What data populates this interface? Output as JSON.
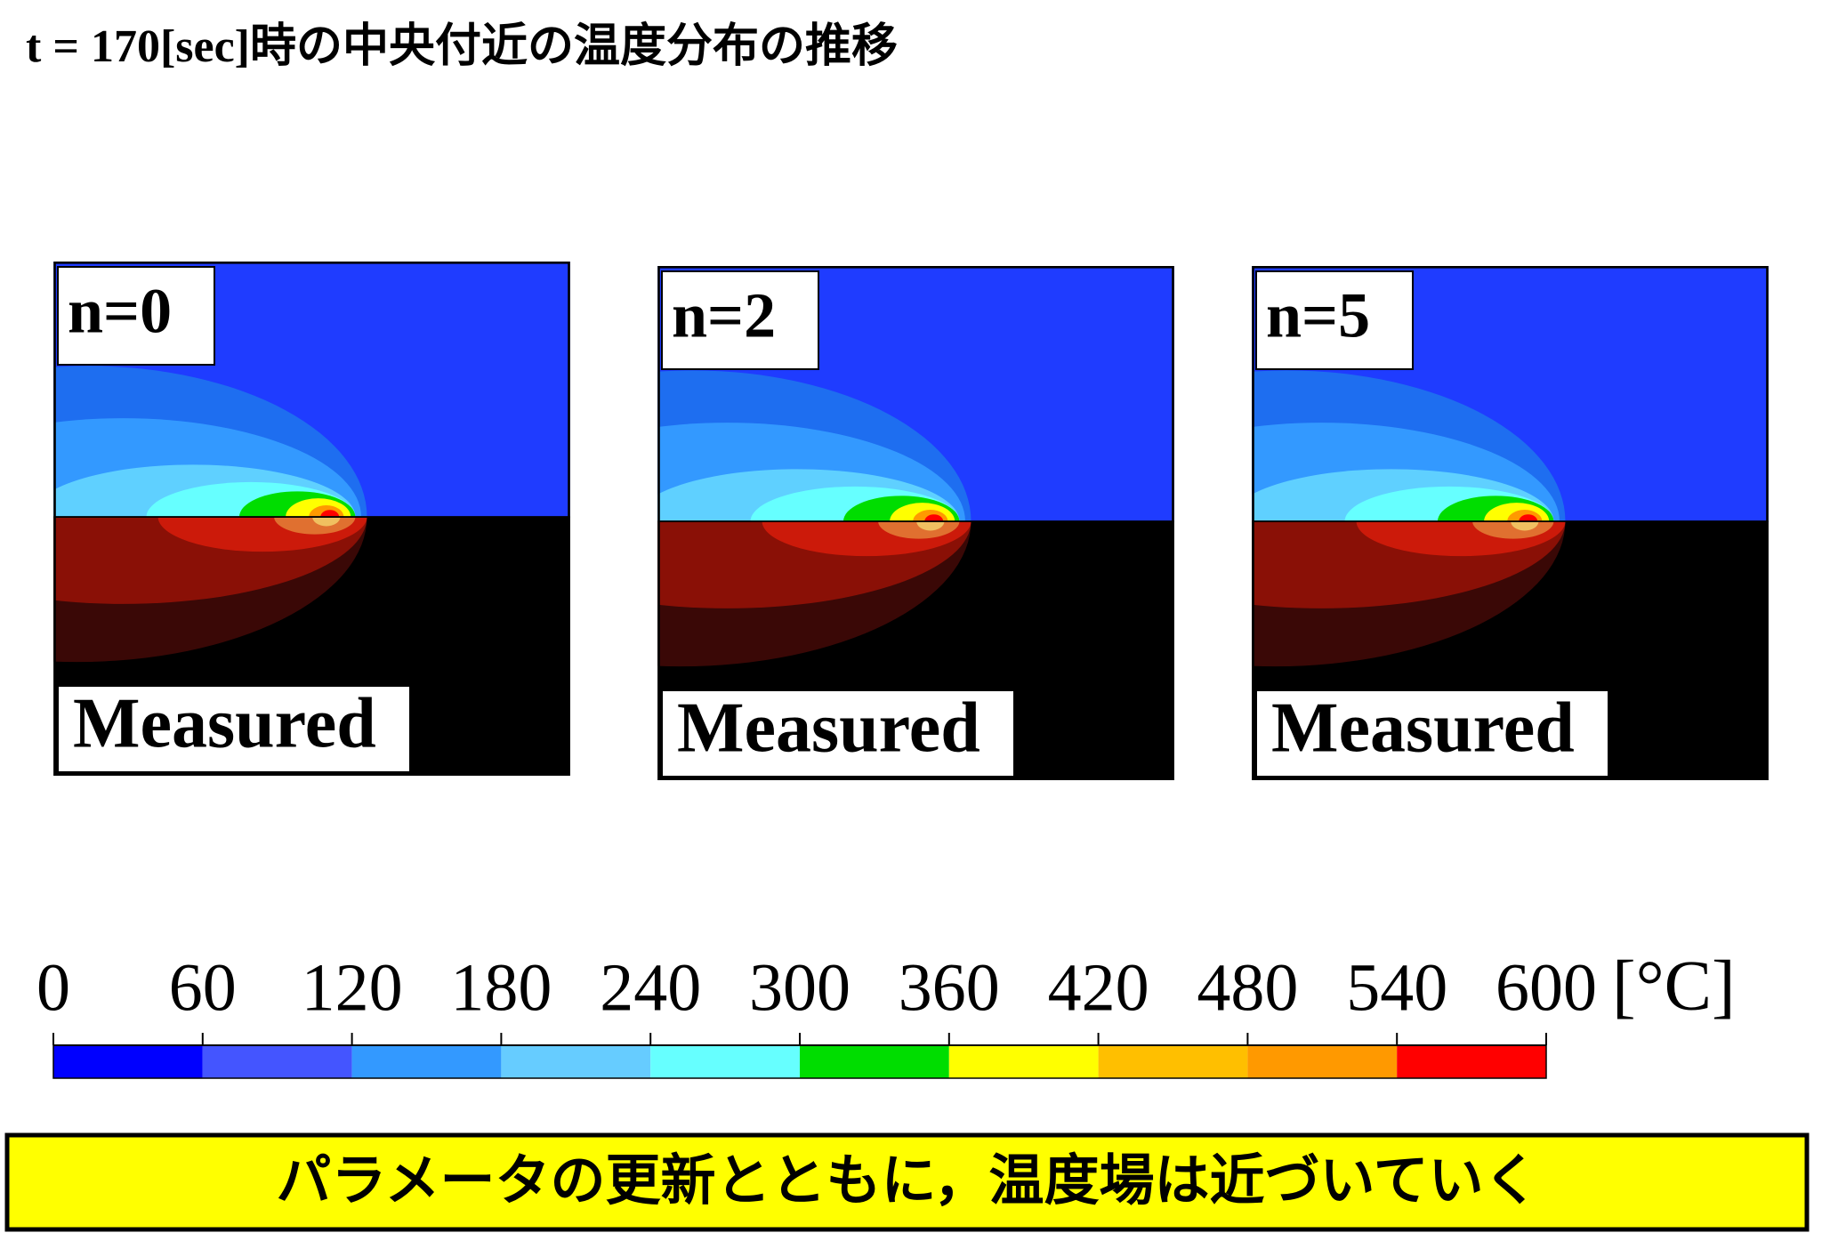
{
  "title": "t = 170[sec]時の中央付近の温度分布の推移",
  "panels": [
    {
      "label": "n=0",
      "reference": "Measured"
    },
    {
      "label": "n=2",
      "reference": "Measured"
    },
    {
      "label": "n=5",
      "reference": "Measured"
    }
  ],
  "colorbar": {
    "ticks": [
      0,
      60,
      120,
      180,
      240,
      300,
      360,
      420,
      480,
      540,
      600
    ],
    "unit": "[°C]",
    "colors": [
      "#0000ff",
      "#4455ff",
      "#3399ff",
      "#66ccff",
      "#66ffff",
      "#00dd00",
      "#ffff00",
      "#ffbf00",
      "#ff9900",
      "#ff0000"
    ]
  },
  "banner": "パラメータの更新とともに，温度場は近づいていく"
}
